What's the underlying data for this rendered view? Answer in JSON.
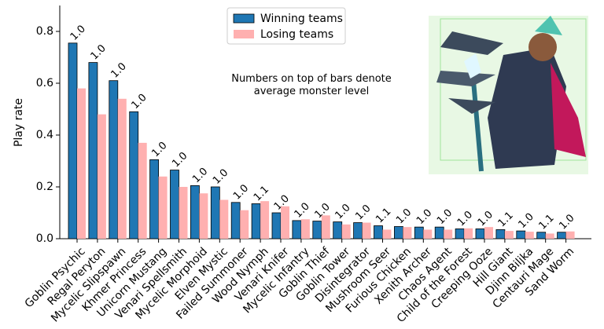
{
  "chart_data": {
    "type": "bar",
    "ylabel": "Play rate",
    "annotation": [
      "Numbers on top of bars denote",
      "average monster level"
    ],
    "categories": [
      "Goblin Psychic",
      "Regal Peryton",
      "Mycelic Slipspawn",
      "Khmer Princess",
      "Unicorn Mustang",
      "Venari Spellsmith",
      "Mycelic Morphoid",
      "Elven Mystic",
      "Failed Summoner",
      "Wood Nymph",
      "Venari Knifer",
      "Mycelic Infantry",
      "Goblin Thief",
      "Goblin Tower",
      "Disintegrator",
      "Mushroom Seer",
      "Furious Chicken",
      "Xenith Archer",
      "Chaos Agent",
      "Child of the Forest",
      "Creeping Ooze",
      "Hill Giant",
      "Djinn Biljka",
      "Centauri Mage",
      "Sand Worm"
    ],
    "series": [
      {
        "name": "Winning teams",
        "color": "#1f77b4",
        "values": [
          0.755,
          0.68,
          0.61,
          0.49,
          0.305,
          0.265,
          0.205,
          0.2,
          0.14,
          0.135,
          0.1,
          0.07,
          0.068,
          0.065,
          0.062,
          0.05,
          0.047,
          0.045,
          0.045,
          0.038,
          0.038,
          0.035,
          0.03,
          0.025,
          0.025
        ],
        "level_labels": [
          "1.0",
          "1.0",
          "1.0",
          "1.0",
          "1.0",
          "1.0",
          "1.0",
          "1.0",
          "1.0",
          "1.1",
          "1.0",
          "1.0",
          "1.0",
          "1.0",
          "1.0",
          "1.1",
          "1.0",
          "1.0",
          "1.0",
          "1.0",
          "1.0",
          "1.1",
          "1.0",
          "1.1",
          "1.0"
        ]
      },
      {
        "name": "Losing teams",
        "color": "#ffb0b0",
        "values": [
          0.58,
          0.48,
          0.54,
          0.37,
          0.24,
          0.2,
          0.175,
          0.15,
          0.11,
          0.145,
          0.125,
          0.075,
          0.09,
          0.055,
          0.062,
          0.035,
          0.045,
          0.035,
          0.035,
          0.04,
          0.045,
          0.03,
          0.027,
          0.02,
          0.028
        ]
      }
    ],
    "ylim": [
      0,
      0.9
    ],
    "yticks": [
      {
        "value": 0,
        "label": "0.0"
      },
      0.2,
      0.4,
      0.6,
      0.8
    ],
    "legend": "upper center",
    "grid": false
  }
}
